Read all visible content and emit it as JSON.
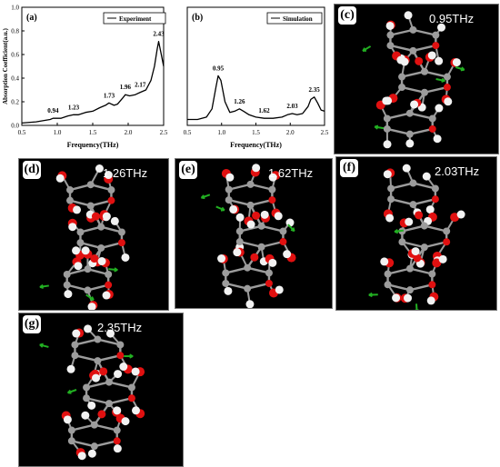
{
  "chart_data": [
    {
      "panel": "(a)",
      "type": "line",
      "xlabel": "Frequency(THz)",
      "ylabel": "Absorption Coefficient(a.u.)",
      "xlim": [
        0.5,
        2.5
      ],
      "ylim": [
        0.0,
        1.0
      ],
      "xticks": [
        "0.5",
        "1.0",
        "1.5",
        "2.0",
        "2.5"
      ],
      "yticks": [
        "0.0",
        "0.2",
        "0.4",
        "0.6",
        "0.8",
        "1.0"
      ],
      "legend": {
        "position": "top-right",
        "label": "Experiment"
      },
      "series": [
        {
          "name": "Experiment",
          "x": [
            0.5,
            0.7,
            0.9,
            0.94,
            1.05,
            1.15,
            1.23,
            1.3,
            1.4,
            1.5,
            1.6,
            1.68,
            1.73,
            1.8,
            1.85,
            1.92,
            1.96,
            2.02,
            2.1,
            2.17,
            2.25,
            2.32,
            2.37,
            2.41,
            2.43,
            2.46,
            2.5
          ],
          "y": [
            0.02,
            0.03,
            0.05,
            0.06,
            0.06,
            0.08,
            0.09,
            0.09,
            0.11,
            0.12,
            0.15,
            0.17,
            0.19,
            0.17,
            0.18,
            0.23,
            0.26,
            0.25,
            0.26,
            0.28,
            0.3,
            0.38,
            0.5,
            0.65,
            0.71,
            0.62,
            0.5
          ]
        }
      ],
      "annotations": [
        {
          "x": 0.94,
          "y": 0.06,
          "text": "0.94"
        },
        {
          "x": 1.23,
          "y": 0.09,
          "text": "1.23"
        },
        {
          "x": 1.73,
          "y": 0.19,
          "text": "1.73"
        },
        {
          "x": 1.96,
          "y": 0.26,
          "text": "1.96"
        },
        {
          "x": 2.17,
          "y": 0.28,
          "text": "2.17"
        },
        {
          "x": 2.43,
          "y": 0.71,
          "text": "2.43"
        }
      ]
    },
    {
      "panel": "(b)",
      "type": "line",
      "xlabel": "Frequency(THz)",
      "ylabel": "",
      "xlim": [
        0.5,
        2.5
      ],
      "ylim": [
        0.0,
        1.0
      ],
      "xticks": [
        "0.5",
        "1.0",
        "1.5",
        "2.0",
        "2.5"
      ],
      "yticks": [],
      "legend": {
        "position": "top-right",
        "label": "Simulation"
      },
      "series": [
        {
          "name": "Simulation",
          "x": [
            0.5,
            0.65,
            0.78,
            0.86,
            0.92,
            0.95,
            0.99,
            1.05,
            1.12,
            1.19,
            1.26,
            1.32,
            1.4,
            1.5,
            1.62,
            1.75,
            1.88,
            1.96,
            2.03,
            2.1,
            2.18,
            2.26,
            2.3,
            2.35,
            2.4,
            2.45,
            2.5
          ],
          "y": [
            0.05,
            0.05,
            0.07,
            0.14,
            0.33,
            0.42,
            0.38,
            0.2,
            0.11,
            0.12,
            0.14,
            0.12,
            0.09,
            0.07,
            0.06,
            0.06,
            0.07,
            0.09,
            0.1,
            0.09,
            0.1,
            0.16,
            0.22,
            0.24,
            0.19,
            0.13,
            0.12
          ]
        }
      ],
      "annotations": [
        {
          "x": 0.95,
          "y": 0.42,
          "text": "0.95"
        },
        {
          "x": 1.26,
          "y": 0.14,
          "text": "1.26"
        },
        {
          "x": 1.62,
          "y": 0.06,
          "text": "1.62"
        },
        {
          "x": 2.03,
          "y": 0.1,
          "text": "2.03"
        },
        {
          "x": 2.35,
          "y": 0.24,
          "text": "2.35"
        }
      ]
    }
  ],
  "colors": {
    "curve": "#000000",
    "carbon": "#9c9c9c",
    "oxygen": "#e01010",
    "hydrogen": "#f2f2f2",
    "vector": "#22b022",
    "panel_bg": "#000000"
  },
  "molecule_panels": [
    {
      "id": "c",
      "label": "(c)",
      "freq": "0.95THz"
    },
    {
      "id": "d",
      "label": "(d)",
      "freq": "1.26THz"
    },
    {
      "id": "e",
      "label": "(e)",
      "freq": "1.62THz"
    },
    {
      "id": "f",
      "label": "(f)",
      "freq": "2.03THz"
    },
    {
      "id": "g",
      "label": "(g)",
      "freq": "2.35THz"
    }
  ]
}
